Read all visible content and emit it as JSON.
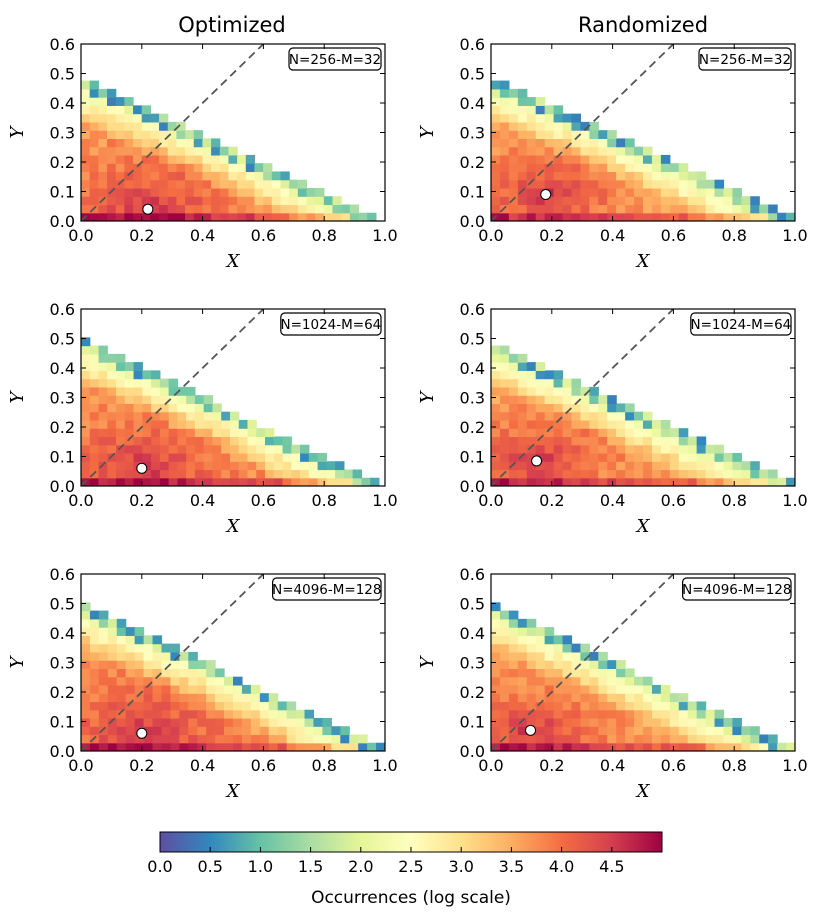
{
  "column_titles": [
    "Optimized",
    "Randomized"
  ],
  "colorbar": {
    "label": "Occurrences (log scale)",
    "ticks": [
      0.0,
      0.5,
      1.0,
      1.5,
      2.0,
      2.5,
      3.0,
      3.5,
      4.0,
      4.5
    ],
    "tick_labels": [
      "0.0",
      "0.5",
      "1.0",
      "1.5",
      "2.0",
      "2.5",
      "3.0",
      "3.5",
      "4.0",
      "4.5"
    ],
    "range": [
      0,
      5
    ],
    "colormap": "Spectral_r",
    "colormap_stops": [
      "#5e4fa2",
      "#3288bd",
      "#66c2a5",
      "#abdda4",
      "#e6f598",
      "#ffffbf",
      "#fee08b",
      "#fdae61",
      "#f46d43",
      "#d53e4f",
      "#9e0142"
    ]
  },
  "chart_data": [
    {
      "type": "heatmap",
      "title": "Optimized",
      "annotation": "N=256-M=32",
      "xlabel": "X",
      "ylabel": "Y",
      "xlim": [
        0,
        1
      ],
      "ylim": [
        0,
        0.6
      ],
      "xticks": [
        "0.0",
        "0.2",
        "0.4",
        "0.6",
        "0.8",
        "1.0"
      ],
      "yticks": [
        "0.0",
        "0.1",
        "0.2",
        "0.3",
        "0.4",
        "0.5",
        "0.6"
      ],
      "edge_intercept_y": 0.48,
      "edge_end_x": 0.97,
      "mean_point": {
        "x": 0.22,
        "y": 0.04
      },
      "reference_line": "y = x (dashed)",
      "color_range": [
        0,
        5
      ]
    },
    {
      "type": "heatmap",
      "title": "Randomized",
      "annotation": "N=256-M=32",
      "xlabel": "X",
      "ylabel": "Y",
      "xlim": [
        0,
        1
      ],
      "ylim": [
        0,
        0.6
      ],
      "xticks": [
        "0.0",
        "0.2",
        "0.4",
        "0.6",
        "0.8",
        "1.0"
      ],
      "yticks": [
        "0.0",
        "0.1",
        "0.2",
        "0.3",
        "0.4",
        "0.5",
        "0.6"
      ],
      "edge_intercept_y": 0.48,
      "edge_end_x": 1.0,
      "mean_point": {
        "x": 0.18,
        "y": 0.09
      },
      "reference_line": "y = x (dashed)",
      "color_range": [
        0,
        5
      ]
    },
    {
      "type": "heatmap",
      "title": "Optimized",
      "annotation": "N=1024-M=64",
      "xlabel": "X",
      "ylabel": "Y",
      "xlim": [
        0,
        1
      ],
      "ylim": [
        0,
        0.6
      ],
      "xticks": [
        "0.0",
        "0.2",
        "0.4",
        "0.6",
        "0.8",
        "1.0"
      ],
      "yticks": [
        "0.0",
        "0.1",
        "0.2",
        "0.3",
        "0.4",
        "0.5",
        "0.6"
      ],
      "edge_intercept_y": 0.5,
      "edge_end_x": 0.98,
      "mean_point": {
        "x": 0.2,
        "y": 0.06
      },
      "reference_line": "y = x (dashed)",
      "color_range": [
        0,
        5
      ]
    },
    {
      "type": "heatmap",
      "title": "Randomized",
      "annotation": "N=1024-M=64",
      "xlabel": "X",
      "ylabel": "Y",
      "xlim": [
        0,
        1
      ],
      "ylim": [
        0,
        0.6
      ],
      "xticks": [
        "0.0",
        "0.2",
        "0.4",
        "0.6",
        "0.8",
        "1.0"
      ],
      "yticks": [
        "0.0",
        "0.1",
        "0.2",
        "0.3",
        "0.4",
        "0.5",
        "0.6"
      ],
      "edge_intercept_y": 0.48,
      "edge_end_x": 1.0,
      "mean_point": {
        "x": 0.15,
        "y": 0.085
      },
      "reference_line": "y = x (dashed)",
      "color_range": [
        0,
        5
      ]
    },
    {
      "type": "heatmap",
      "title": "Optimized",
      "annotation": "N=4096-M=128",
      "xlabel": "X",
      "ylabel": "Y",
      "xlim": [
        0,
        1
      ],
      "ylim": [
        0,
        0.6
      ],
      "xticks": [
        "0.0",
        "0.2",
        "0.4",
        "0.6",
        "0.8",
        "1.0"
      ],
      "yticks": [
        "0.0",
        "0.1",
        "0.2",
        "0.3",
        "0.4",
        "0.5",
        "0.6"
      ],
      "edge_intercept_y": 0.5,
      "edge_end_x": 1.0,
      "mean_point": {
        "x": 0.2,
        "y": 0.06
      },
      "reference_line": "y = x (dashed)",
      "color_range": [
        0,
        5
      ]
    },
    {
      "type": "heatmap",
      "title": "Randomized",
      "annotation": "N=4096-M=128",
      "xlabel": "X",
      "ylabel": "Y",
      "xlim": [
        0,
        1
      ],
      "ylim": [
        0,
        0.6
      ],
      "xticks": [
        "0.0",
        "0.2",
        "0.4",
        "0.6",
        "0.8",
        "1.0"
      ],
      "yticks": [
        "0.0",
        "0.1",
        "0.2",
        "0.3",
        "0.4",
        "0.5",
        "0.6"
      ],
      "edge_intercept_y": 0.5,
      "edge_end_x": 1.0,
      "mean_point": {
        "x": 0.13,
        "y": 0.07
      },
      "reference_line": "y = x (dashed)",
      "color_range": [
        0,
        5
      ]
    }
  ]
}
